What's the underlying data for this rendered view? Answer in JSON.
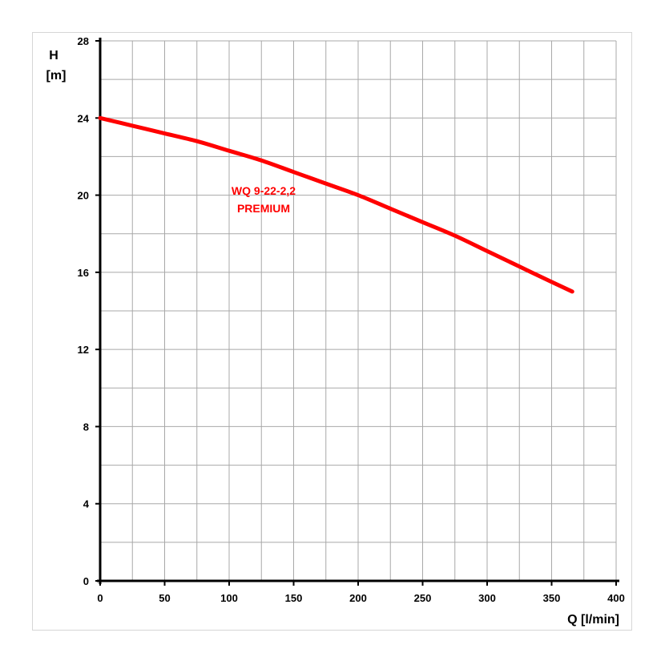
{
  "chart_data": {
    "type": "line",
    "title": "",
    "xlabel": "Q [l/min]",
    "ylabel_line1": "H",
    "ylabel_line2": "[m]",
    "xlim": [
      0,
      400
    ],
    "ylim": [
      0,
      28
    ],
    "x_ticks": [
      0,
      50,
      100,
      150,
      200,
      250,
      300,
      350,
      400
    ],
    "y_ticks": [
      0,
      4,
      8,
      12,
      16,
      20,
      24,
      28
    ],
    "x_minor_step": 25,
    "y_minor_step": 2,
    "grid": true,
    "curve_label_line1": "WQ 9-22-2,2",
    "curve_label_line2": "PREMIUM",
    "series": [
      {
        "color": "#ff0000",
        "x": [
          0,
          25,
          50,
          75,
          100,
          125,
          150,
          175,
          200,
          225,
          250,
          275,
          300,
          325,
          350,
          366
        ],
        "y": [
          24.0,
          23.6,
          23.2,
          22.8,
          22.3,
          21.8,
          21.2,
          20.6,
          20.0,
          19.3,
          18.6,
          17.9,
          17.1,
          16.3,
          15.5,
          15.0
        ]
      }
    ]
  }
}
